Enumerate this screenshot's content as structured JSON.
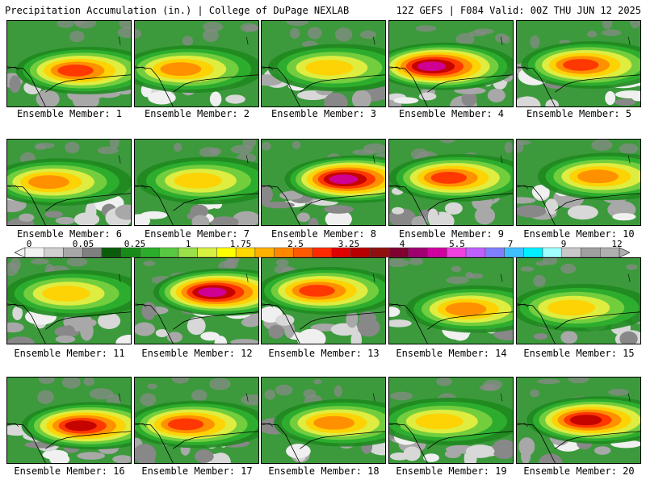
{
  "header": {
    "left": "Precipitation Accumulation (in.) | College of DuPage NEXLAB",
    "right": "12Z GEFS | F084 Valid: 00Z THU JUN 12 2025"
  },
  "legend": {
    "labels": [
      "0",
      "0.05",
      "0.25",
      "1",
      "1.75",
      "2.5",
      "3.25",
      "4",
      "5.5",
      "7",
      "9",
      "12"
    ],
    "colors": [
      "#f2f2f2",
      "#d0d0d0",
      "#a8a8a8",
      "#808080",
      "#0a5c0a",
      "#178b17",
      "#2aae2a",
      "#58c840",
      "#9be04a",
      "#d8f040",
      "#ffff00",
      "#ffd800",
      "#ffb000",
      "#ff8800",
      "#ff5a00",
      "#ff2a00",
      "#e00000",
      "#b80000",
      "#901010",
      "#800030",
      "#a00070",
      "#d000a0",
      "#f040e0",
      "#c060ff",
      "#8080ff",
      "#40c0ff",
      "#00f0ff",
      "#a0ffff",
      "#c8c8c8",
      "#a0a0a0",
      "#b0b0b0"
    ]
  },
  "members": [
    {
      "label": "Ensemble Member: 1"
    },
    {
      "label": "Ensemble Member: 2"
    },
    {
      "label": "Ensemble Member: 3"
    },
    {
      "label": "Ensemble Member: 4"
    },
    {
      "label": "Ensemble Member: 5"
    },
    {
      "label": "Ensemble Member: 6"
    },
    {
      "label": "Ensemble Member: 7"
    },
    {
      "label": "Ensemble Member: 8"
    },
    {
      "label": "Ensemble Member: 9"
    },
    {
      "label": "Ensemble Member: 10"
    },
    {
      "label": "Ensemble Member: 11"
    },
    {
      "label": "Ensemble Member: 12"
    },
    {
      "label": "Ensemble Member: 13"
    },
    {
      "label": "Ensemble Member: 14"
    },
    {
      "label": "Ensemble Member: 15"
    },
    {
      "label": "Ensemble Member: 16"
    },
    {
      "label": "Ensemble Member: 17"
    },
    {
      "label": "Ensemble Member: 18"
    },
    {
      "label": "Ensemble Member: 19"
    },
    {
      "label": "Ensemble Member: 20"
    }
  ]
}
